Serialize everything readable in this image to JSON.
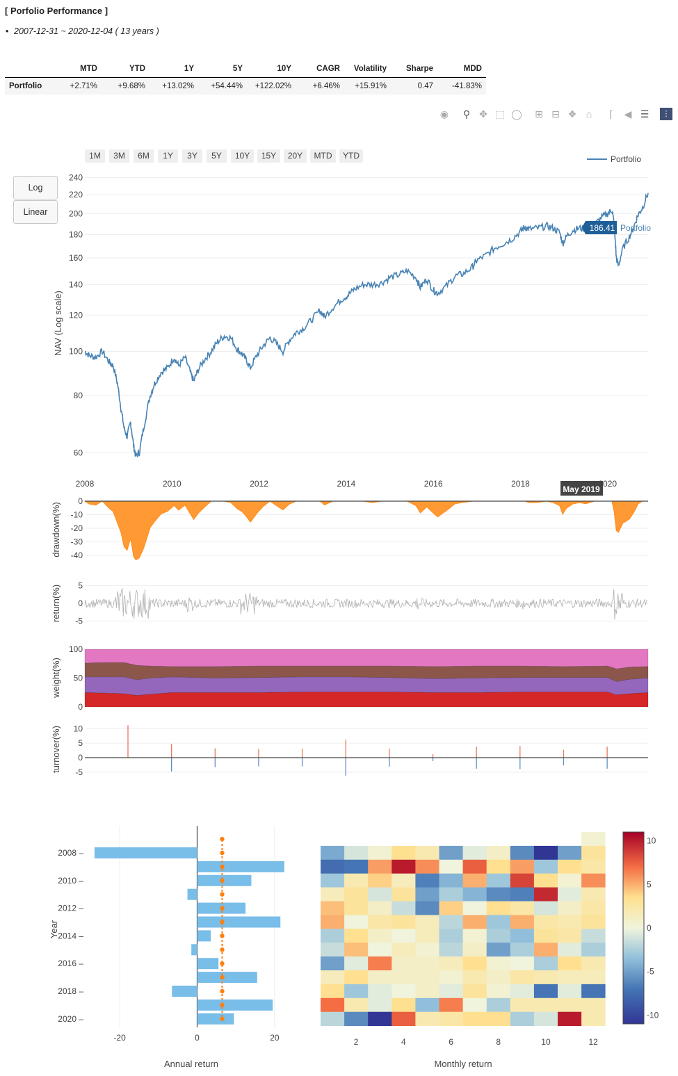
{
  "title": "[ Porfolio Performance ]",
  "period": "2007-12-31 ~ 2020-12-04 ( 13 years )",
  "bullet": "•",
  "table": {
    "headers": [
      "",
      "MTD",
      "YTD",
      "1Y",
      "5Y",
      "10Y",
      "CAGR",
      "Volatility",
      "Sharpe",
      "MDD"
    ],
    "row_label": "Portfolio",
    "values": [
      "+2.71%",
      "+9.68%",
      "+13.02%",
      "+54.44%",
      "+122.02%",
      "+6.46%",
      "+15.91%",
      "0.47",
      "-41.83%"
    ]
  },
  "toolbar_icons": [
    "camera-icon",
    "zoom-icon",
    "pan-icon",
    "box-select-icon",
    "lasso-icon",
    "zoom-in-icon",
    "zoom-out-icon",
    "autoscale-icon",
    "reset-axes-icon",
    "spike-lines-icon",
    "hover-closest-icon",
    "hover-compare-icon",
    "plotly-logo-icon"
  ],
  "range_buttons": [
    "1M",
    "3M",
    "6M",
    "1Y",
    "3Y",
    "5Y",
    "10Y",
    "15Y",
    "20Y",
    "MTD",
    "YTD"
  ],
  "scale_buttons": [
    "Log",
    "Linear"
  ],
  "colors": {
    "nav": "#4682b4",
    "drawdown": "#ff9933",
    "return": "#b0b0b0",
    "bar": "#79bde9",
    "cagr": "#ff7f0e",
    "weight": [
      "#d62728",
      "#9467bd",
      "#8c564b",
      "#e377c2"
    ],
    "turnover_pos": "#e8775a",
    "turnover_neg": "#5c8fc9"
  },
  "chart_data": [
    {
      "type": "line",
      "ylabel": "NAV (Log scale)",
      "scale": "log",
      "ylim": [
        57,
        242
      ],
      "xlim": [
        2008.0,
        2020.93
      ],
      "xticks": [
        "2008",
        "2010",
        "2012",
        "2014",
        "2016",
        "2018",
        "2020"
      ],
      "yticks": [
        60,
        80,
        100,
        120,
        140,
        160,
        180,
        200,
        220,
        240
      ],
      "legend": "Portfolio",
      "legend_position": "top-right",
      "hover_label": "186.41",
      "hover_series": "Portfolio",
      "hover_x_label": "May 2019",
      "series": [
        {
          "name": "Portfolio",
          "x": [
            2008.0,
            2008.1,
            2008.25,
            2008.4,
            2008.55,
            2008.65,
            2008.75,
            2008.83,
            2008.9,
            2008.97,
            2009.05,
            2009.12,
            2009.17,
            2009.25,
            2009.35,
            2009.5,
            2009.6,
            2009.75,
            2009.9,
            2010.05,
            2010.15,
            2010.3,
            2010.42,
            2010.5,
            2010.6,
            2010.75,
            2010.9,
            2011.05,
            2011.2,
            2011.35,
            2011.5,
            2011.6,
            2011.7,
            2011.8,
            2011.95,
            2012.1,
            2012.25,
            2012.4,
            2012.55,
            2012.7,
            2012.85,
            2013.0,
            2013.2,
            2013.4,
            2013.5,
            2013.7,
            2013.9,
            2014.05,
            2014.2,
            2014.4,
            2014.6,
            2014.8,
            2015.0,
            2015.2,
            2015.4,
            2015.6,
            2015.7,
            2015.85,
            2016.0,
            2016.1,
            2016.3,
            2016.5,
            2016.7,
            2016.9,
            2017.0,
            2017.2,
            2017.4,
            2017.6,
            2017.8,
            2018.0,
            2018.1,
            2018.2,
            2018.4,
            2018.6,
            2018.75,
            2018.9,
            2018.97,
            2019.05,
            2019.2,
            2019.35,
            2019.5,
            2019.7,
            2019.85,
            2020.0,
            2020.1,
            2020.15,
            2020.2,
            2020.25,
            2020.35,
            2020.5,
            2020.6,
            2020.7,
            2020.8,
            2020.93
          ],
          "values": [
            100,
            98,
            97,
            100,
            95,
            93,
            85,
            75,
            68,
            65,
            70,
            62,
            59,
            60,
            68,
            80,
            85,
            90,
            92,
            97,
            93,
            97,
            90,
            86,
            91,
            96,
            100,
            105,
            108,
            107,
            101,
            99,
            96,
            92,
            98,
            103,
            107,
            104,
            100,
            106,
            110,
            112,
            117,
            123,
            119,
            125,
            130,
            133,
            137,
            140,
            140,
            141,
            145,
            147,
            150,
            145,
            138,
            144,
            136,
            134,
            139,
            146,
            148,
            153,
            158,
            162,
            168,
            172,
            176,
            183,
            187,
            185,
            186,
            188,
            186,
            182,
            172,
            178,
            184,
            186,
            185,
            189,
            196,
            200,
            204,
            190,
            160,
            154,
            168,
            178,
            187,
            199,
            206,
            222
          ]
        }
      ]
    },
    {
      "type": "area",
      "ylabel": "drawdown(%)",
      "ylim": [
        -42,
        0
      ],
      "yticks": [
        0,
        -10,
        -20,
        -30,
        -40
      ],
      "x": [
        2008.0,
        2008.1,
        2008.25,
        2008.4,
        2008.55,
        2008.65,
        2008.75,
        2008.83,
        2008.9,
        2008.97,
        2009.05,
        2009.12,
        2009.17,
        2009.25,
        2009.35,
        2009.5,
        2009.6,
        2009.75,
        2009.9,
        2010.05,
        2010.15,
        2010.3,
        2010.42,
        2010.5,
        2010.6,
        2010.75,
        2010.9,
        2011.05,
        2011.2,
        2011.35,
        2011.5,
        2011.6,
        2011.7,
        2011.8,
        2011.95,
        2012.1,
        2012.25,
        2012.4,
        2012.55,
        2012.7,
        2012.85,
        2013.0,
        2013.2,
        2013.4,
        2013.5,
        2013.7,
        2013.9,
        2014.05,
        2014.2,
        2014.4,
        2014.6,
        2014.8,
        2015.0,
        2015.2,
        2015.4,
        2015.6,
        2015.7,
        2015.85,
        2016.0,
        2016.1,
        2016.3,
        2016.5,
        2016.7,
        2016.9,
        2017.0,
        2017.2,
        2017.4,
        2017.6,
        2017.8,
        2018.0,
        2018.1,
        2018.2,
        2018.4,
        2018.6,
        2018.75,
        2018.9,
        2018.97,
        2019.05,
        2019.2,
        2019.35,
        2019.5,
        2019.7,
        2019.85,
        2020.0,
        2020.1,
        2020.15,
        2020.2,
        2020.25,
        2020.35,
        2020.5,
        2020.6,
        2020.7,
        2020.8,
        2020.93
      ],
      "values": [
        0,
        -2,
        -3,
        0,
        -5,
        -7,
        -15,
        -25,
        -32,
        -35,
        -30,
        -38,
        -41.8,
        -40,
        -32,
        -20,
        -15,
        -10,
        -8,
        -3,
        -7,
        -3,
        -10,
        -14,
        -9,
        -4,
        0,
        0,
        0,
        -1,
        -6,
        -8,
        -11,
        -15,
        -9,
        -4,
        0,
        -3,
        -7,
        -2,
        0,
        0,
        0,
        0,
        -3,
        0,
        0,
        0,
        0,
        0,
        -1,
        0,
        0,
        0,
        0,
        -3,
        -8,
        -4,
        -9,
        -11,
        -7,
        -2,
        -1,
        0,
        0,
        0,
        0,
        0,
        0,
        0,
        0,
        -1,
        -1,
        0,
        -1,
        -3,
        -9,
        -5,
        -2,
        -1,
        -2,
        0,
        0,
        0,
        0,
        -7,
        -21,
        -25,
        -18,
        -13,
        -8,
        -2,
        0,
        0
      ]
    },
    {
      "type": "line",
      "ylabel": "return(%)",
      "ylim": [
        -7.5,
        7.5
      ],
      "yticks": [
        5,
        0,
        -5
      ]
    },
    {
      "type": "area",
      "ylabel": "weight(%)",
      "ylim": [
        0,
        100
      ],
      "yticks": [
        100,
        50,
        0
      ],
      "x": [
        2008.0,
        2008.5,
        2008.9,
        2009.2,
        2009.5,
        2010.0,
        2011.0,
        2012.0,
        2013.0,
        2014.0,
        2015.0,
        2016.0,
        2017.0,
        2018.0,
        2019.0,
        2020.0,
        2020.2,
        2020.5,
        2020.93
      ],
      "series": [
        {
          "values": [
            25,
            24,
            23,
            20,
            22,
            25,
            25,
            25,
            26,
            26,
            26,
            25,
            25,
            26,
            26,
            26,
            21,
            23,
            25
          ]
        },
        {
          "values": [
            27,
            28,
            29,
            27,
            28,
            27,
            25,
            26,
            26,
            26,
            25,
            24,
            25,
            25,
            25,
            25,
            23,
            25,
            25
          ]
        },
        {
          "values": [
            24,
            25,
            25,
            25,
            21,
            18,
            20,
            20,
            19,
            19,
            20,
            21,
            21,
            20,
            19,
            20,
            22,
            21,
            20
          ]
        },
        {
          "values": [
            24,
            23,
            23,
            28,
            29,
            30,
            30,
            29,
            29,
            29,
            29,
            30,
            29,
            29,
            30,
            29,
            34,
            31,
            30
          ]
        }
      ]
    },
    {
      "type": "bar",
      "ylabel": "turnover(%)",
      "ylim": [
        -6,
        12
      ],
      "yticks": [
        10,
        5,
        0,
        -5
      ],
      "x": [
        2008.99,
        2009.99,
        2010.99,
        2011.99,
        2012.99,
        2013.99,
        2014.99,
        2015.99,
        2016.99,
        2017.99,
        2018.99,
        2019.99
      ],
      "pos": [
        11.2,
        4.7,
        3.2,
        3.0,
        3.0,
        6.2,
        3.1,
        1.2,
        3.8,
        4.0,
        2.7,
        3.8
      ],
      "neg": [
        0,
        -4.8,
        -3.3,
        -3.0,
        -3.0,
        -6.2,
        -3.1,
        -1.2,
        -3.8,
        -4.0,
        -2.7,
        -3.8
      ]
    },
    {
      "type": "bar",
      "orientation": "horizontal",
      "xlabel": "Annual return",
      "ylabel": "Year",
      "xlim": [
        -29,
        29
      ],
      "xticks": [
        -20,
        0,
        20
      ],
      "yticks": [
        "2008",
        "2010",
        "2012",
        "2014",
        "2016",
        "2018",
        "2020"
      ],
      "categories": [
        2008,
        2009,
        2010,
        2011,
        2012,
        2013,
        2014,
        2015,
        2016,
        2017,
        2018,
        2019,
        2020
      ],
      "values": [
        -26.5,
        22.5,
        14,
        -2.5,
        12.5,
        21.5,
        3.5,
        -1.5,
        5.5,
        15.5,
        -6.5,
        19.5,
        9.5
      ],
      "cagr": 6.46
    },
    {
      "type": "heatmap",
      "xlabel": "Monthly return",
      "xticks": [
        2,
        4,
        6,
        8,
        10,
        12
      ],
      "zlim": [
        -11,
        11
      ],
      "colorbar_ticks": [
        10,
        5,
        0,
        -5,
        -10
      ],
      "rows": [
        [
          null,
          null,
          null,
          null,
          null,
          null,
          null,
          null,
          null,
          null,
          null,
          0.5
        ],
        [
          -4.5,
          -1,
          0.5,
          3.5,
          2,
          -5,
          -0.5,
          1,
          -6,
          -11,
          -5,
          3
        ],
        [
          -7.5,
          -7,
          5.5,
          10,
          6,
          0,
          7.5,
          3.5,
          5.5,
          -3,
          3.5,
          2.5
        ],
        [
          -3,
          2,
          4,
          1.5,
          -6.5,
          -4,
          5,
          -3,
          8.5,
          3.5,
          0.5,
          6
        ],
        [
          1.5,
          3,
          -1,
          3,
          -5,
          -2.5,
          -4,
          -6,
          -6.5,
          9.5,
          -0.5,
          2
        ],
        [
          4.5,
          3,
          1,
          -1.5,
          -6,
          4,
          0,
          3.5,
          2.5,
          -1,
          1,
          2.5
        ],
        [
          5,
          0,
          2.5,
          3,
          1.5,
          -2,
          5,
          -3,
          5,
          2.5,
          2,
          3
        ],
        [
          -2.5,
          3.5,
          1,
          0,
          1.5,
          -2.5,
          0.5,
          -2.5,
          -3.5,
          3,
          2.5,
          -1.5
        ],
        [
          -1.5,
          4.5,
          0,
          1.5,
          0.5,
          -2,
          1,
          -5,
          -2.5,
          5,
          -0.5,
          -2.5
        ],
        [
          -5,
          -0.5,
          6.5,
          1,
          1,
          1.5,
          3.5,
          0.5,
          0,
          -2.5,
          3.5,
          2
        ],
        [
          1.5,
          3.5,
          1,
          1,
          1,
          0.5,
          2,
          1,
          2.5,
          2,
          1.5,
          1.5
        ],
        [
          3.5,
          -3,
          -0.5,
          0,
          1,
          -0.5,
          3,
          0.5,
          -0.5,
          -7,
          -0.5,
          -7
        ],
        [
          7,
          2,
          -0.5,
          3.5,
          -3.5,
          6.5,
          0,
          -2.5,
          2,
          2,
          2,
          2
        ],
        [
          -2,
          -6,
          -11,
          7.5,
          2,
          2.5,
          3.5,
          3.5,
          -2.5,
          -1,
          10,
          2
        ]
      ]
    }
  ]
}
